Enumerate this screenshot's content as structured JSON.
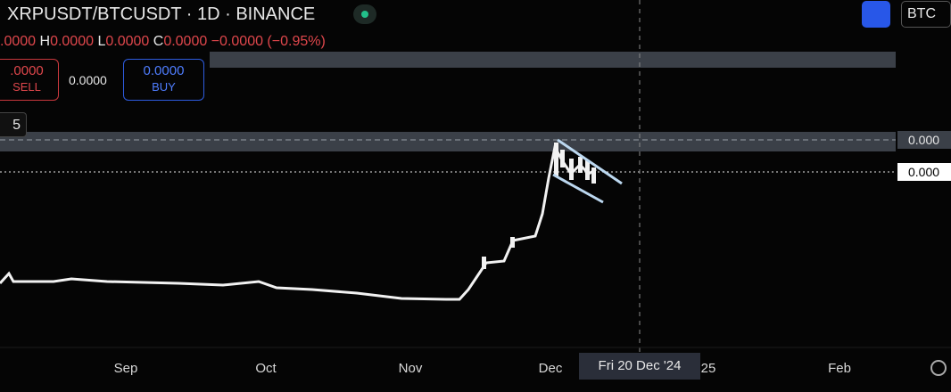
{
  "header": {
    "symbol": "XRPUSDT/BTCUSDT · 1D · BINANCE",
    "currency": "BTC"
  },
  "ohlc": {
    "open": ".0000",
    "high_label": "H",
    "high": "0.0000",
    "low_label": "L",
    "low": "0.0000",
    "close_label": "C",
    "close": "0.0000",
    "change": "−0.0000 (−0.95%)"
  },
  "trade": {
    "sell_price": ".0000",
    "sell_label": "SELL",
    "spread": "0.0000",
    "buy_price": "0.0000",
    "buy_label": "BUY"
  },
  "indicator": "5",
  "price_labels": [
    "0.000",
    "0.000"
  ],
  "time_axis": {
    "labels": [
      "Sep",
      "Oct",
      "Nov",
      "Dec",
      "25",
      "Feb"
    ],
    "crosshair": "Fri 20 Dec '24"
  }
}
